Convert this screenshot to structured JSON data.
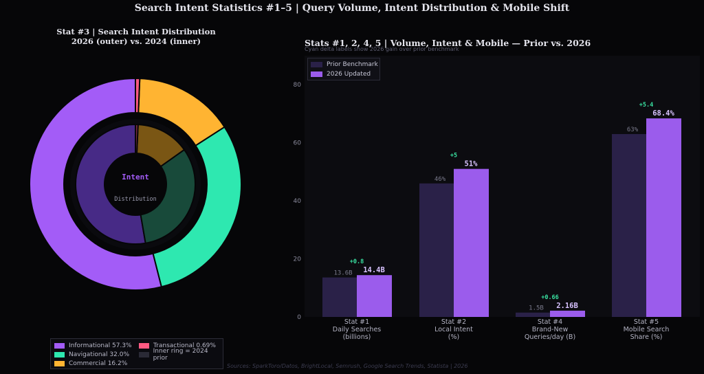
{
  "title": "Search Intent Statistics #1–5  |  Query Volume, Intent Distribution & Mobile Shift",
  "source": "Sources: SparkToro/Datos, BrightLocal, Semrush, Google Search Trends, Statista  |  2026",
  "colors": {
    "background": "#060608",
    "informational": "#a35cf7",
    "navigational": "#2ee8b0",
    "commercial": "#ffb432",
    "transactional": "#ff5a82",
    "prior_bar": "#2a2148",
    "updated_bar": "#9b5cec",
    "delta": "#39e0a0"
  },
  "chart_data": [
    {
      "type": "pie",
      "title": "Stat #3  |  Search Intent Distribution",
      "subtitle": "2026 (outer) vs. 2024 (inner)",
      "center_label": "Intent",
      "center_sublabel": "Distribution",
      "series": [
        {
          "name": "2026 (outer)",
          "categories": [
            "Informational",
            "Navigational",
            "Commercial",
            "Transactional"
          ],
          "values": [
            57.3,
            32.0,
            16.2,
            0.69
          ]
        },
        {
          "name": "2024 (inner)",
          "categories": [
            "Informational",
            "Navigational",
            "Commercial",
            "Transactional"
          ],
          "values": [
            52.7,
            32.1,
            14.5,
            0.7
          ]
        }
      ],
      "legend": {
        "placement": "bottom-left",
        "items": [
          {
            "label": "Informational 57.3%",
            "color": "#a35cf7"
          },
          {
            "label": "Transactional 0.69%",
            "color": "#ff5a82"
          },
          {
            "label": "Navigational 32.0%",
            "color": "#2ee8b0"
          },
          {
            "label": "Inner ring = 2024 prior",
            "color": "#2a2a36"
          },
          {
            "label": "Commercial 16.2%",
            "color": "#ffb432"
          }
        ]
      }
    },
    {
      "type": "bar",
      "title": "Stats #1, 2, 4, 5  |  Volume, Intent & Mobile — Prior vs. 2026",
      "subtitle": "Cyan delta labels show 2026 gain over prior benchmark",
      "categories": [
        "Stat #1\nDaily Searches\n(billions)",
        "Stat #2\nLocal Intent\n(%)",
        "Stat #4\nBrand-New\nQueries/day (B)",
        "Stat #5\nMobile Search\nShare (%)"
      ],
      "series": [
        {
          "name": "Prior Benchmark",
          "values": [
            13.6,
            46,
            1.5,
            63
          ],
          "labels": [
            "13.6B",
            "46%",
            "1.5B",
            "63%"
          ]
        },
        {
          "name": "2026 Updated",
          "values": [
            14.4,
            51,
            2.16,
            68.4
          ],
          "labels": [
            "14.4B",
            "51%",
            "2.16B",
            "68.4%"
          ]
        }
      ],
      "deltas": [
        "+0.8",
        "+5",
        "+0.66",
        "+5.4"
      ],
      "ylim": [
        0,
        90
      ],
      "yticks": [
        0,
        20,
        40,
        60,
        80
      ],
      "grid": false,
      "legend_placement": "top-left"
    }
  ]
}
